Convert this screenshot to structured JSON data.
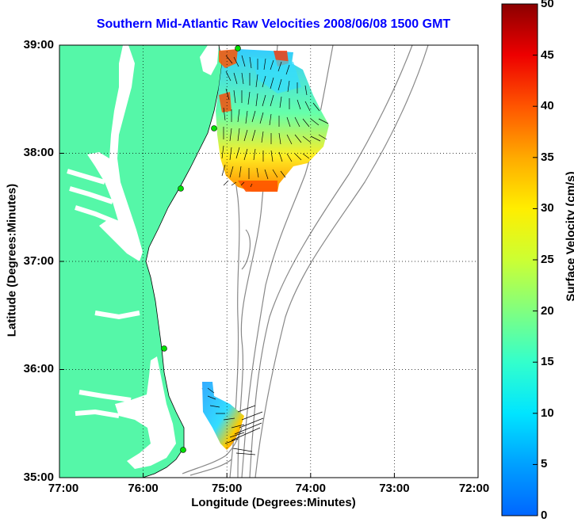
{
  "title": "Southern Mid-Atlantic Raw Velocities 2008/06/08 1500 GMT",
  "xlabel": "Longitude (Degrees:Minutes)",
  "ylabel": "Latitude (Degrees:Minutes)",
  "x_ticks": [
    "77:00",
    "76:00",
    "75:00",
    "74:00",
    "73:00",
    "72:00"
  ],
  "y_ticks": [
    "39:00",
    "38:00",
    "37:00",
    "36:00",
    "35:00"
  ],
  "colorbar": {
    "label": "Surface Velocity (cm/s)",
    "ticks": [
      "50",
      "45",
      "40",
      "35",
      "30",
      "25",
      "20",
      "15",
      "10",
      "5",
      "0"
    ],
    "range": [
      0,
      50
    ]
  },
  "colors": {
    "land": "#55f7a8",
    "title": "#0000ff",
    "station": "#00e000",
    "bathymetry": "#888888"
  },
  "map": {
    "lon_range": [
      -77,
      -72
    ],
    "lat_range": [
      35,
      39
    ],
    "grid": "dotted"
  }
}
